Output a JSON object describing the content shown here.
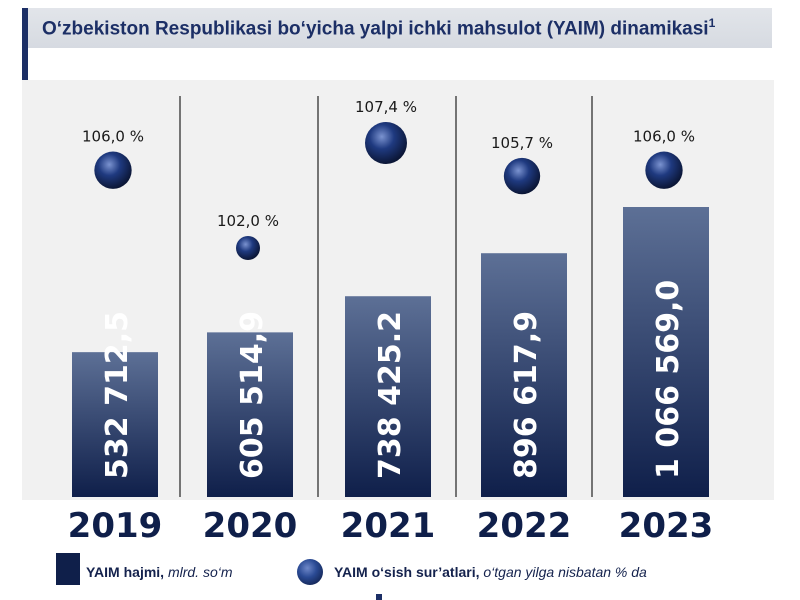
{
  "title": "O‘zbekiston Respublikasi bo‘yicha yalpi ichki mahsulot (YAIM) dinamikasi",
  "title_footnote": "1",
  "legend": {
    "bar_label_bold": "YAIM hajmi,",
    "bar_label_italic": "mlrd. so‘m",
    "dot_label_bold": "YAIM o‘sish sur’atlari,",
    "dot_label_italic": "o‘tgan yilga nisbatan % da"
  },
  "colors": {
    "bar_top": "#5d7096",
    "bar_bottom": "#0f1f4a",
    "dot": "#1f3a80",
    "year_text": "#0f1f4a",
    "title": "#1c2f66"
  },
  "chart_data": {
    "type": "bar",
    "categories": [
      "2019",
      "2020",
      "2021",
      "2022",
      "2023"
    ],
    "series": [
      {
        "name": "YAIM hajmi, mlrd. so‘m",
        "values": [
          532712.5,
          605514.9,
          738425.2,
          896617.9,
          1066569.0
        ],
        "labels": [
          "532 712,5",
          "605 514,9",
          "738 425.2",
          "896 617,9",
          "1 066 569,0"
        ]
      },
      {
        "name": "YAIM o‘sish sur’atlari, o‘tgan yilga nisbatan % da",
        "values": [
          106.0,
          102.0,
          107.4,
          105.7,
          106.0
        ],
        "labels": [
          "106,0 %",
          "102,0 %",
          "107,4 %",
          "105,7 %",
          "106,0 %"
        ]
      }
    ]
  }
}
